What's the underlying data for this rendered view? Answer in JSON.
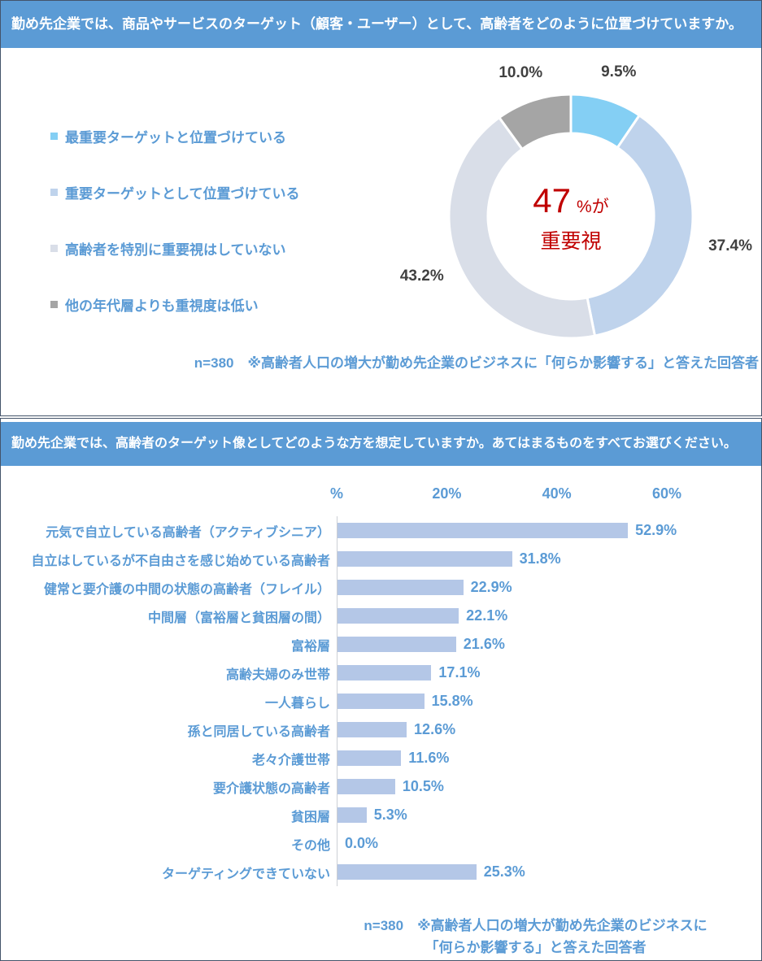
{
  "colors": {
    "header_bg": "#5B9BD5",
    "header_text": "#FFFFFF",
    "panel_border": "#44546A",
    "blue_text": "#5B9BD5",
    "dark_value_label": "#404040",
    "center_red": "#C00000",
    "bar_fill": "#B4C7E7",
    "axis_line": "#CCCFD4"
  },
  "section1": {
    "header": "勤め先企業では、商品やサービスのターゲット（顧客・ユーザー）として、高齢者をどのように位置づけていますか。",
    "center_value": "47",
    "center_unit": "%が",
    "center_line2": "重要視",
    "note": "n=380　※高齢者人口の増大が勤め先企業のビジネスに「何らか影響する」と答えた回答者"
  },
  "section2": {
    "header": "勤め先企業では、高齢者のターゲット像としてどのような方を想定していますか。あてはまるものをすべてお選びください。",
    "note_line1": "n=380　※高齢者人口の増大が勤め先企業のビジネスに",
    "note_line2": "「何らか影響する」と答えた回答者"
  },
  "chart_data": [
    {
      "type": "pie",
      "subtype": "donut",
      "title": "勤め先企業では、商品やサービスのターゲット（顧客・ユーザー）として、高齢者をどのように位置づけていますか。",
      "labels": [
        "最重要ターゲットと位置づけている",
        "重要ターゲットとして位置づけている",
        "高齢者を特別に重要視はしていない",
        "他の年代層よりも重視度は低い"
      ],
      "values": [
        9.5,
        37.4,
        43.2,
        10.0
      ],
      "colors": [
        "#84CFF4",
        "#BFD3EC",
        "#D9DEE8",
        "#A5A5A5"
      ],
      "start_angle_deg": 0,
      "direction": "clockwise",
      "legend_position": "left",
      "center_annotation": "47%が重要視",
      "sample_note": "n=380　※高齢者人口の増大が勤め先企業のビジネスに「何らか影響する」と答えた回答者"
    },
    {
      "type": "bar",
      "orientation": "horizontal",
      "title": "勤め先企業では、高齢者のターゲット像としてどのような方を想定していますか。あてはまるものをすべてお選びください。",
      "categories": [
        "元気で自立している高齢者（アクティブシニア）",
        "自立はしているが不自由さを感じ始めている高齢者",
        "健常と要介護の中間の状態の高齢者（フレイル）",
        "中間層（富裕層と貧困層の間）",
        "富裕層",
        "高齢夫婦のみ世帯",
        "一人暮らし",
        "孫と同居している高齢者",
        "老々介護世帯",
        "要介護状態の高齢者",
        "貧困層",
        "その他",
        "ターゲティングできていない"
      ],
      "values": [
        52.9,
        31.8,
        22.9,
        22.1,
        21.6,
        17.1,
        15.8,
        12.6,
        11.6,
        10.5,
        5.3,
        0.0,
        25.3
      ],
      "xlim": [
        0,
        60
      ],
      "xticks": [
        {
          "label": "%",
          "value": 0
        },
        {
          "label": "20%",
          "value": 20
        },
        {
          "label": "40%",
          "value": 40
        },
        {
          "label": "60%",
          "value": 60
        }
      ],
      "grid": false,
      "bar_color": "#B4C7E7",
      "value_label_format": "{value}%",
      "sample_note": "n=380　※高齢者人口の増大が勤め先企業のビジネスに「何らか影響する」と答えた回答者"
    }
  ]
}
